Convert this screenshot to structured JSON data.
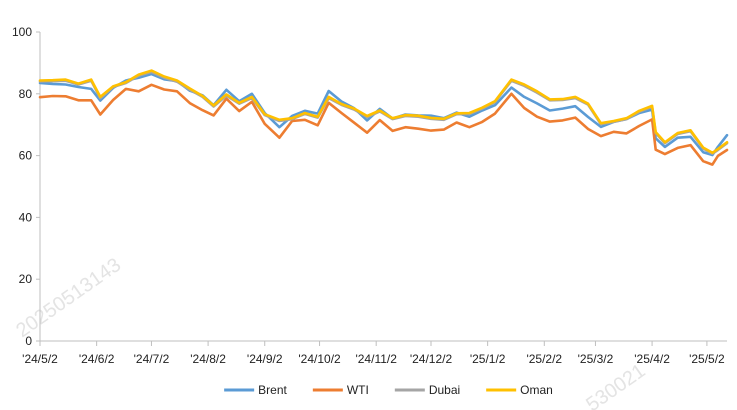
{
  "watermarks": [
    "20250513143",
    "530021"
  ],
  "chart_data": {
    "type": "line",
    "title": "",
    "xlabel": "",
    "ylabel": "",
    "ylim": [
      0,
      100
    ],
    "yticks": [
      0,
      20,
      40,
      60,
      80,
      100
    ],
    "xlim": [
      "2024-05-02",
      "2025-05-13"
    ],
    "xticks": [
      {
        "date": "2024-05-02",
        "label": "'24/5/2"
      },
      {
        "date": "2024-06-02",
        "label": "'24/6/2"
      },
      {
        "date": "2024-07-02",
        "label": "'24/7/2"
      },
      {
        "date": "2024-08-02",
        "label": "'24/8/2"
      },
      {
        "date": "2024-09-02",
        "label": "'24/9/2"
      },
      {
        "date": "2024-10-02",
        "label": "'24/10/2"
      },
      {
        "date": "2024-11-02",
        "label": "'24/11/2"
      },
      {
        "date": "2024-12-02",
        "label": "'24/12/2"
      },
      {
        "date": "2025-01-02",
        "label": "'25/1/2"
      },
      {
        "date": "2025-02-02",
        "label": "'25/2/2"
      },
      {
        "date": "2025-03-02",
        "label": "'25/3/2"
      },
      {
        "date": "2025-04-02",
        "label": "'25/4/2"
      },
      {
        "date": "2025-05-02",
        "label": "'25/5/2"
      }
    ],
    "grid": false,
    "legend_position": "bottom",
    "series": [
      {
        "name": "Brent",
        "color": "#5b9bd5",
        "points": [
          [
            "2024-05-02",
            83.5
          ],
          [
            "2024-05-09",
            83.2
          ],
          [
            "2024-05-16",
            83.0
          ],
          [
            "2024-05-23",
            82.2
          ],
          [
            "2024-05-30",
            81.6
          ],
          [
            "2024-06-04",
            77.8
          ],
          [
            "2024-06-11",
            81.9
          ],
          [
            "2024-06-18",
            84.3
          ],
          [
            "2024-06-25",
            85.2
          ],
          [
            "2024-07-02",
            86.4
          ],
          [
            "2024-07-09",
            84.7
          ],
          [
            "2024-07-16",
            84.1
          ],
          [
            "2024-07-23",
            81.0
          ],
          [
            "2024-07-30",
            79.5
          ],
          [
            "2024-08-05",
            76.3
          ],
          [
            "2024-08-12",
            81.3
          ],
          [
            "2024-08-19",
            77.6
          ],
          [
            "2024-08-26",
            80.0
          ],
          [
            "2024-09-02",
            73.8
          ],
          [
            "2024-09-10",
            69.2
          ],
          [
            "2024-09-17",
            72.8
          ],
          [
            "2024-09-24",
            74.5
          ],
          [
            "2024-10-01",
            73.6
          ],
          [
            "2024-10-07",
            80.9
          ],
          [
            "2024-10-14",
            77.5
          ],
          [
            "2024-10-21",
            75.3
          ],
          [
            "2024-10-28",
            71.4
          ],
          [
            "2024-11-04",
            75.1
          ],
          [
            "2024-11-11",
            72.0
          ],
          [
            "2024-11-18",
            73.3
          ],
          [
            "2024-11-25",
            73.0
          ],
          [
            "2024-12-02",
            72.9
          ],
          [
            "2024-12-09",
            72.1
          ],
          [
            "2024-12-16",
            73.9
          ],
          [
            "2024-12-23",
            72.6
          ],
          [
            "2024-12-30",
            74.6
          ],
          [
            "2025-01-06",
            76.3
          ],
          [
            "2025-01-15",
            82.0
          ],
          [
            "2025-01-22",
            79.0
          ],
          [
            "2025-01-29",
            76.9
          ],
          [
            "2025-02-05",
            74.6
          ],
          [
            "2025-02-12",
            75.2
          ],
          [
            "2025-02-19",
            76.0
          ],
          [
            "2025-02-26",
            72.5
          ],
          [
            "2025-03-05",
            69.3
          ],
          [
            "2025-03-12",
            70.9
          ],
          [
            "2025-03-19",
            71.8
          ],
          [
            "2025-03-26",
            73.8
          ],
          [
            "2025-04-02",
            74.9
          ],
          [
            "2025-04-04",
            65.6
          ],
          [
            "2025-04-09",
            62.8
          ],
          [
            "2025-04-16",
            65.8
          ],
          [
            "2025-04-23",
            66.1
          ],
          [
            "2025-04-30",
            61.1
          ],
          [
            "2025-05-05",
            60.2
          ],
          [
            "2025-05-08",
            62.8
          ],
          [
            "2025-05-13",
            66.6
          ]
        ]
      },
      {
        "name": "WTI",
        "color": "#ed7d31",
        "points": [
          [
            "2024-05-02",
            78.9
          ],
          [
            "2024-05-09",
            79.3
          ],
          [
            "2024-05-16",
            79.2
          ],
          [
            "2024-05-23",
            77.9
          ],
          [
            "2024-05-30",
            77.9
          ],
          [
            "2024-06-04",
            73.3
          ],
          [
            "2024-06-11",
            78.0
          ],
          [
            "2024-06-18",
            81.6
          ],
          [
            "2024-06-25",
            80.8
          ],
          [
            "2024-07-02",
            82.9
          ],
          [
            "2024-07-09",
            81.4
          ],
          [
            "2024-07-16",
            80.8
          ],
          [
            "2024-07-23",
            77.0
          ],
          [
            "2024-07-30",
            74.7
          ],
          [
            "2024-08-05",
            73.0
          ],
          [
            "2024-08-12",
            78.4
          ],
          [
            "2024-08-19",
            74.4
          ],
          [
            "2024-08-26",
            77.4
          ],
          [
            "2024-09-02",
            70.3
          ],
          [
            "2024-09-10",
            65.8
          ],
          [
            "2024-09-17",
            71.2
          ],
          [
            "2024-09-24",
            71.6
          ],
          [
            "2024-10-01",
            69.8
          ],
          [
            "2024-10-07",
            77.1
          ],
          [
            "2024-10-14",
            73.8
          ],
          [
            "2024-10-21",
            70.6
          ],
          [
            "2024-10-28",
            67.4
          ],
          [
            "2024-11-04",
            71.5
          ],
          [
            "2024-11-11",
            68.0
          ],
          [
            "2024-11-18",
            69.2
          ],
          [
            "2024-11-25",
            68.7
          ],
          [
            "2024-12-02",
            68.1
          ],
          [
            "2024-12-09",
            68.4
          ],
          [
            "2024-12-16",
            70.7
          ],
          [
            "2024-12-23",
            69.2
          ],
          [
            "2024-12-30",
            70.9
          ],
          [
            "2025-01-06",
            73.6
          ],
          [
            "2025-01-15",
            80.0
          ],
          [
            "2025-01-22",
            75.4
          ],
          [
            "2025-01-29",
            72.6
          ],
          [
            "2025-02-05",
            71.0
          ],
          [
            "2025-02-12",
            71.4
          ],
          [
            "2025-02-19",
            72.3
          ],
          [
            "2025-02-26",
            68.6
          ],
          [
            "2025-03-05",
            66.3
          ],
          [
            "2025-03-12",
            67.7
          ],
          [
            "2025-03-19",
            67.2
          ],
          [
            "2025-03-26",
            69.6
          ],
          [
            "2025-04-02",
            71.7
          ],
          [
            "2025-04-04",
            61.9
          ],
          [
            "2025-04-09",
            60.5
          ],
          [
            "2025-04-16",
            62.5
          ],
          [
            "2025-04-23",
            63.4
          ],
          [
            "2025-04-30",
            58.2
          ],
          [
            "2025-05-05",
            57.1
          ],
          [
            "2025-05-08",
            59.9
          ],
          [
            "2025-05-13",
            61.8
          ]
        ]
      },
      {
        "name": "Dubai",
        "color": "#a5a5a5",
        "points": [
          [
            "2024-05-02",
            84.0
          ],
          [
            "2024-05-09",
            84.1
          ],
          [
            "2024-05-16",
            84.2
          ],
          [
            "2024-05-23",
            83.0
          ],
          [
            "2024-05-30",
            84.2
          ],
          [
            "2024-06-04",
            78.6
          ],
          [
            "2024-06-11",
            82.2
          ],
          [
            "2024-06-18",
            83.5
          ],
          [
            "2024-06-25",
            85.9
          ],
          [
            "2024-07-02",
            87.1
          ],
          [
            "2024-07-09",
            85.2
          ],
          [
            "2024-07-16",
            83.9
          ],
          [
            "2024-07-23",
            81.3
          ],
          [
            "2024-07-30",
            79.0
          ],
          [
            "2024-08-05",
            75.9
          ],
          [
            "2024-08-12",
            79.4
          ],
          [
            "2024-08-19",
            76.8
          ],
          [
            "2024-08-26",
            78.6
          ],
          [
            "2024-09-02",
            73.1
          ],
          [
            "2024-09-10",
            71.2
          ],
          [
            "2024-09-17",
            71.8
          ],
          [
            "2024-09-24",
            73.5
          ],
          [
            "2024-10-01",
            72.3
          ],
          [
            "2024-10-07",
            78.6
          ],
          [
            "2024-10-14",
            76.4
          ],
          [
            "2024-10-21",
            74.9
          ],
          [
            "2024-10-28",
            72.5
          ],
          [
            "2024-11-04",
            74.3
          ],
          [
            "2024-11-11",
            71.8
          ],
          [
            "2024-11-18",
            72.8
          ],
          [
            "2024-11-25",
            72.6
          ],
          [
            "2024-12-02",
            71.9
          ],
          [
            "2024-12-09",
            71.6
          ],
          [
            "2024-12-16",
            73.4
          ],
          [
            "2024-12-23",
            73.5
          ],
          [
            "2024-12-30",
            75.2
          ],
          [
            "2025-01-06",
            77.3
          ],
          [
            "2025-01-15",
            84.2
          ],
          [
            "2025-01-22",
            82.6
          ],
          [
            "2025-01-29",
            80.4
          ],
          [
            "2025-02-05",
            77.9
          ],
          [
            "2025-02-12",
            78.0
          ],
          [
            "2025-02-19",
            78.6
          ],
          [
            "2025-02-26",
            76.5
          ],
          [
            "2025-03-05",
            70.2
          ],
          [
            "2025-03-12",
            70.9
          ],
          [
            "2025-03-19",
            71.8
          ],
          [
            "2025-03-26",
            74.2
          ],
          [
            "2025-04-02",
            75.8
          ],
          [
            "2025-04-04",
            67.3
          ],
          [
            "2025-04-09",
            64.0
          ],
          [
            "2025-04-16",
            67.0
          ],
          [
            "2025-04-23",
            67.9
          ],
          [
            "2025-04-30",
            62.3
          ],
          [
            "2025-05-05",
            60.6
          ],
          [
            "2025-05-08",
            61.8
          ],
          [
            "2025-05-13",
            64.0
          ]
        ]
      },
      {
        "name": "Oman",
        "color": "#ffc000",
        "points": [
          [
            "2024-05-02",
            84.3
          ],
          [
            "2024-05-09",
            84.4
          ],
          [
            "2024-05-16",
            84.6
          ],
          [
            "2024-05-23",
            83.3
          ],
          [
            "2024-05-30",
            84.6
          ],
          [
            "2024-06-04",
            79.0
          ],
          [
            "2024-06-11",
            82.4
          ],
          [
            "2024-06-18",
            83.8
          ],
          [
            "2024-06-25",
            86.2
          ],
          [
            "2024-07-02",
            87.5
          ],
          [
            "2024-07-09",
            85.6
          ],
          [
            "2024-07-16",
            84.3
          ],
          [
            "2024-07-23",
            81.7
          ],
          [
            "2024-07-30",
            79.3
          ],
          [
            "2024-08-05",
            76.2
          ],
          [
            "2024-08-12",
            79.8
          ],
          [
            "2024-08-19",
            77.1
          ],
          [
            "2024-08-26",
            79.0
          ],
          [
            "2024-09-02",
            73.4
          ],
          [
            "2024-09-10",
            71.6
          ],
          [
            "2024-09-17",
            72.1
          ],
          [
            "2024-09-24",
            73.8
          ],
          [
            "2024-10-01",
            72.6
          ],
          [
            "2024-10-07",
            79.0
          ],
          [
            "2024-10-14",
            76.7
          ],
          [
            "2024-10-21",
            75.2
          ],
          [
            "2024-10-28",
            72.8
          ],
          [
            "2024-11-04",
            74.6
          ],
          [
            "2024-11-11",
            72.1
          ],
          [
            "2024-11-18",
            73.1
          ],
          [
            "2024-11-25",
            72.9
          ],
          [
            "2024-12-02",
            72.2
          ],
          [
            "2024-12-09",
            71.9
          ],
          [
            "2024-12-16",
            73.7
          ],
          [
            "2024-12-23",
            73.8
          ],
          [
            "2024-12-30",
            75.5
          ],
          [
            "2025-01-06",
            77.6
          ],
          [
            "2025-01-15",
            84.6
          ],
          [
            "2025-01-22",
            83.0
          ],
          [
            "2025-01-29",
            80.8
          ],
          [
            "2025-02-05",
            78.2
          ],
          [
            "2025-02-12",
            78.3
          ],
          [
            "2025-02-19",
            79.0
          ],
          [
            "2025-02-26",
            76.8
          ],
          [
            "2025-03-05",
            70.5
          ],
          [
            "2025-03-12",
            71.2
          ],
          [
            "2025-03-19",
            72.1
          ],
          [
            "2025-03-26",
            74.5
          ],
          [
            "2025-04-02",
            76.1
          ],
          [
            "2025-04-04",
            67.6
          ],
          [
            "2025-04-09",
            64.3
          ],
          [
            "2025-04-16",
            67.3
          ],
          [
            "2025-04-23",
            68.2
          ],
          [
            "2025-04-30",
            62.6
          ],
          [
            "2025-05-05",
            60.9
          ],
          [
            "2025-05-08",
            62.1
          ],
          [
            "2025-05-13",
            64.3
          ]
        ]
      }
    ]
  }
}
